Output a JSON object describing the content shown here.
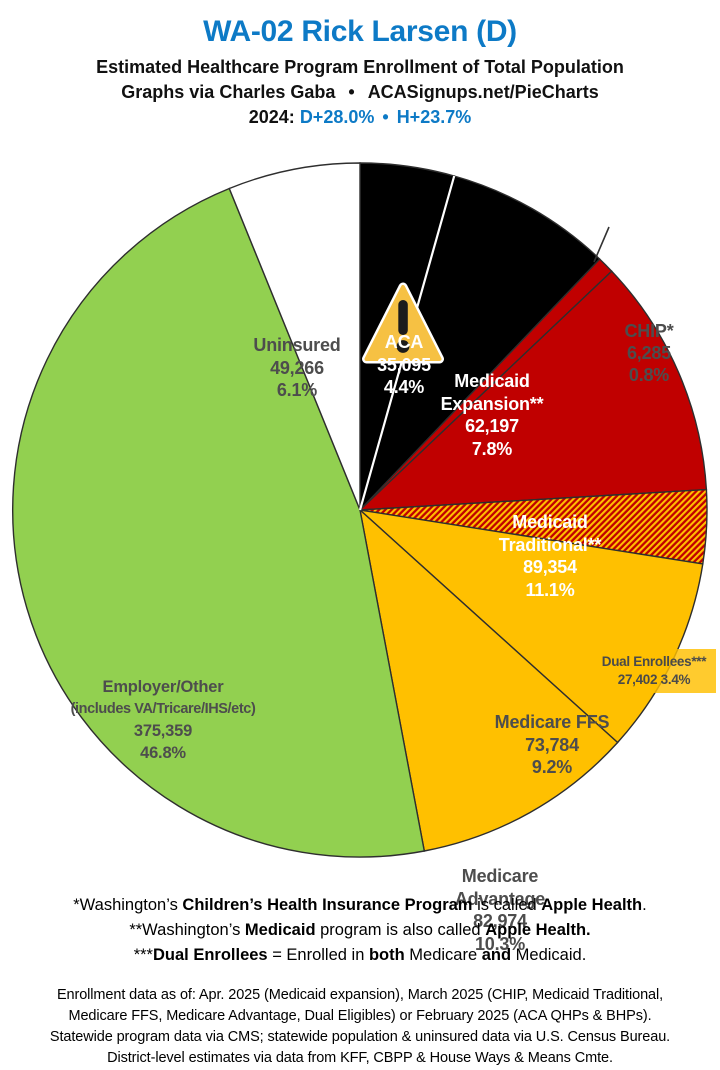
{
  "header": {
    "title": "WA-02 Rick Larsen (D)",
    "subtitle": "Estimated Healthcare Program Enrollment of Total Population",
    "credit_prefix": "Graphs via Charles Gaba",
    "credit_separator": "•",
    "credit_site": "ACASignups.net/PieCharts",
    "election": {
      "year_label": "2024:",
      "d_margin": "D+28.0%",
      "separator": "•",
      "h_margin": "H+23.7%"
    }
  },
  "colors": {
    "accent_blue": "#0d7ac6",
    "black_slice": "#000000",
    "red_slice": "#C00000",
    "gold_slice": "#FFC000",
    "green_slice": "#92D050",
    "white_slice": "#FFFFFF",
    "gray_label": "#4d4d4d",
    "warning_fill": "#F6C143"
  },
  "chart_data": {
    "type": "pie",
    "title": "Estimated Healthcare Program Enrollment of Total Population",
    "start_angle": "12 o'clock",
    "direction": "clockwise",
    "slices": [
      {
        "key": "aca",
        "label": "ACA",
        "value": 35095,
        "pct": 4.4,
        "fill": "#000000",
        "text_color": "#FFFFFF",
        "lines": [
          "ACA",
          "35,095",
          "4.4%"
        ]
      },
      {
        "key": "medicaid-expansion",
        "label": "Medicaid Expansion**",
        "value": 62197,
        "pct": 7.8,
        "fill": "#000000",
        "text_color": "#FFFFFF",
        "lines": [
          "Medicaid",
          "Expansion**",
          "62,197",
          "7.8%"
        ]
      },
      {
        "key": "chip",
        "label": "CHIP*",
        "value": 6285,
        "pct": 0.8,
        "fill": "#C00000",
        "text_color": "#4d4d4d",
        "label_placement": "outside-callout",
        "lines": [
          "CHIP*",
          "6,285",
          "0.8%"
        ]
      },
      {
        "key": "medicaid-traditional",
        "label": "Medicaid Traditional**",
        "value": 89354,
        "pct": 11.1,
        "fill": "#C00000",
        "text_color": "#FFFFFF",
        "lines": [
          "Medicaid",
          "Traditional**",
          "89,354",
          "11.1%"
        ]
      },
      {
        "key": "dual-enrollees",
        "label": "Dual Enrollees***",
        "value": 27402,
        "pct": 3.4,
        "fill": "hatch",
        "hatch_colors": [
          "#C00000",
          "#FFC000"
        ],
        "text_color": "#4a4a4a",
        "lines": [
          "Dual Enrollees***",
          "27,402 3.4%"
        ]
      },
      {
        "key": "medicare-ffs",
        "label": "Medicare FFS",
        "value": 73784,
        "pct": 9.2,
        "fill": "#FFC000",
        "text_color": "#4d4d4d",
        "lines": [
          "Medicare FFS",
          "73,784",
          "9.2%"
        ]
      },
      {
        "key": "medicare-advantage",
        "label": "Medicare Advantage",
        "value": 82974,
        "pct": 10.3,
        "fill": "#FFC000",
        "text_color": "#4d4d4d",
        "lines": [
          "Medicare",
          "Advantage",
          "82,974",
          "10.3%"
        ]
      },
      {
        "key": "employer-other",
        "label": "Employer/Other",
        "sublabel": "(includes VA/Tricare/IHS/etc)",
        "value": 375359,
        "pct": 46.8,
        "fill": "#92D050",
        "text_color": "#4d4d4d",
        "lines": [
          "Employer/Other",
          "(includes VA/Tricare/IHS/etc)",
          "375,359",
          "46.8%"
        ]
      },
      {
        "key": "uninsured",
        "label": "Uninsured",
        "value": 49266,
        "pct": 6.1,
        "fill": "#FFFFFF",
        "text_color": "#4d4d4d",
        "lines": [
          "Uninsured",
          "49,266",
          "6.1%"
        ]
      }
    ]
  },
  "icons": {
    "warning": "warning-triangle-exclamation"
  },
  "footnotes": [
    {
      "segments": [
        {
          "t": "*Washington’s ",
          "b": false
        },
        {
          "t": "Children’s Health Insurance Program",
          "b": true
        },
        {
          "t": " is called ",
          "b": false
        },
        {
          "t": "Apple Health",
          "b": true
        },
        {
          "t": ".",
          "b": false
        }
      ]
    },
    {
      "segments": [
        {
          "t": "**Washington’s ",
          "b": false
        },
        {
          "t": "Medicaid",
          "b": true
        },
        {
          "t": " program is also called ",
          "b": false
        },
        {
          "t": "Apple Health.",
          "b": true
        }
      ]
    },
    {
      "segments": [
        {
          "t": "***",
          "b": false
        },
        {
          "t": "Dual Enrollees",
          "b": true
        },
        {
          "t": " = Enrolled in ",
          "b": false
        },
        {
          "t": "both",
          "b": true
        },
        {
          "t": " Medicare ",
          "b": false
        },
        {
          "t": "and",
          "b": true
        },
        {
          "t": " Medicaid.",
          "b": false
        }
      ]
    }
  ],
  "source_note": {
    "lines": [
      "Enrollment data as of: Apr. 2025 (Medicaid expansion), March 2025 (CHIP, Medicaid Traditional,",
      "Medicare FFS, Medicare Advantage, Dual Eligibles) or February 2025 (ACA QHPs & BHPs).",
      "Statewide program data via CMS; statewide population & uninsured data via U.S. Census Bureau.",
      "District-level estimates via data from KFF, CBPP & House Ways & Means Cmte."
    ]
  }
}
